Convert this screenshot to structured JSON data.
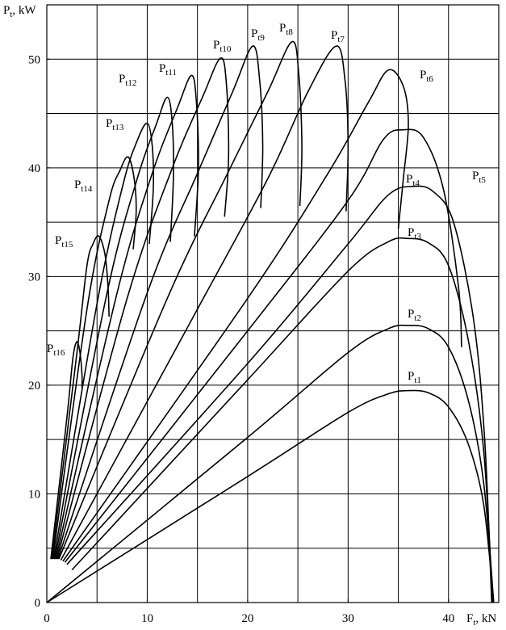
{
  "chart_data": {
    "type": "line",
    "xlabel": "Ft, kN",
    "ylabel": "Pt, kW",
    "xlim": [
      0,
      45
    ],
    "ylim": [
      0,
      55
    ],
    "xticks": [
      0,
      10,
      20,
      30,
      40
    ],
    "yticks": [
      0,
      10,
      20,
      30,
      40,
      50
    ],
    "xgrid": [
      5,
      10,
      15,
      20,
      25,
      30,
      35,
      40
    ],
    "ygrid": [
      5,
      10,
      15,
      20,
      25,
      30,
      35,
      40,
      45,
      50
    ],
    "grid": true,
    "color": "#000000",
    "series": [
      {
        "name": "Pt1",
        "x": [
          0,
          20,
          30,
          34,
          36,
          38,
          40,
          42,
          43.5,
          44.5
        ],
        "values": [
          0,
          11.6,
          17.5,
          19.2,
          19.5,
          19.3,
          18,
          14.5,
          9,
          0
        ]
      },
      {
        "name": "Pt2",
        "x": [
          0,
          20,
          30,
          34,
          36,
          38,
          40,
          42,
          43.5,
          44.5
        ],
        "values": [
          0,
          15.2,
          23,
          25.2,
          25.5,
          25.2,
          23.5,
          18.5,
          11,
          0
        ]
      },
      {
        "name": "Pt3",
        "x": [
          2.5,
          20,
          30,
          34,
          36,
          38,
          40,
          42,
          43.5,
          44.4
        ],
        "values": [
          3,
          20.5,
          30.5,
          33.2,
          33.5,
          33.1,
          31,
          24,
          14,
          0
        ]
      },
      {
        "name": "Pt4",
        "x": [
          2,
          20,
          30,
          34,
          36.5,
          38.5,
          40.5,
          42.5,
          43.6,
          44.3
        ],
        "values": [
          3.5,
          22,
          33,
          37.5,
          38.3,
          37.8,
          35,
          26,
          15,
          0
        ]
      },
      {
        "name": "Pt5",
        "x": [
          1.8,
          20,
          30,
          33.5,
          35.5,
          37.5,
          39.5,
          41,
          41.3
        ],
        "values": [
          3.7,
          25,
          37,
          42.6,
          43.5,
          42.8,
          38,
          29,
          23.5
        ]
      },
      {
        "name": "Pt6",
        "x": [
          1.6,
          20,
          28,
          32,
          34,
          35.5,
          36,
          35.5,
          35
        ],
        "values": [
          3.8,
          28,
          39.5,
          46,
          49,
          47.5,
          44,
          39,
          34.4
        ]
      },
      {
        "name": "Pt7",
        "x": [
          1.4,
          15,
          22,
          26,
          28.8,
          29.7,
          30,
          29.8
        ],
        "values": [
          3.9,
          27,
          39,
          47,
          51.2,
          48,
          42,
          36
        ]
      },
      {
        "name": "Pt8",
        "x": [
          1.2,
          12,
          18,
          22,
          24.4,
          25.1,
          25.4,
          25.2
        ],
        "values": [
          4,
          28,
          39.5,
          47,
          51.6,
          48.5,
          42,
          36.5
        ]
      },
      {
        "name": "Pt9",
        "x": [
          1.1,
          10,
          15,
          18.5,
          20.5,
          21.2,
          21.5,
          21.3
        ],
        "values": [
          4,
          28.5,
          39.5,
          47,
          51.2,
          48,
          42,
          36.3
        ]
      },
      {
        "name": "Pt10",
        "x": [
          1,
          8,
          12.5,
          15.5,
          17.3,
          17.9,
          18.1,
          17.7
        ],
        "values": [
          4,
          28,
          40,
          46.5,
          50.1,
          47.5,
          41,
          35.5
        ]
      },
      {
        "name": "Pt11",
        "x": [
          0.9,
          7,
          10.5,
          13,
          14.4,
          14.9,
          15.1,
          14.7
        ],
        "values": [
          4,
          28.5,
          39.5,
          45.5,
          48.5,
          46,
          40,
          33.7
        ]
      },
      {
        "name": "Pt12",
        "x": [
          0.8,
          6,
          9,
          10.9,
          12,
          12.5,
          12.6,
          12.3
        ],
        "values": [
          4,
          28.5,
          39,
          44,
          46.5,
          44,
          39,
          33.2
        ]
      },
      {
        "name": "Pt13",
        "x": [
          0.7,
          5,
          7.6,
          9,
          10,
          10.5,
          10.6,
          10.2
        ],
        "values": [
          4,
          27.5,
          38.5,
          42.5,
          44.1,
          42,
          38,
          33
        ]
      },
      {
        "name": "Pt14",
        "x": [
          0.6,
          4,
          6.2,
          7.3,
          8.1,
          8.7,
          8.9,
          8.6
        ],
        "values": [
          4,
          27,
          37,
          39.8,
          41,
          39,
          36,
          32.5
        ]
      },
      {
        "name": "Pt15",
        "x": [
          0.5,
          3,
          4,
          4.6,
          5.2,
          5.8,
          6.1,
          6.2
        ],
        "values": [
          4,
          23,
          31,
          33,
          33.7,
          32,
          29,
          26.3
        ]
      },
      {
        "name": "Pt16",
        "x": [
          0.4,
          2,
          2.6,
          3,
          3.3,
          3.5,
          3.5
        ],
        "values": [
          4,
          17,
          22.5,
          24,
          23,
          21,
          19.8
        ]
      }
    ]
  }
}
